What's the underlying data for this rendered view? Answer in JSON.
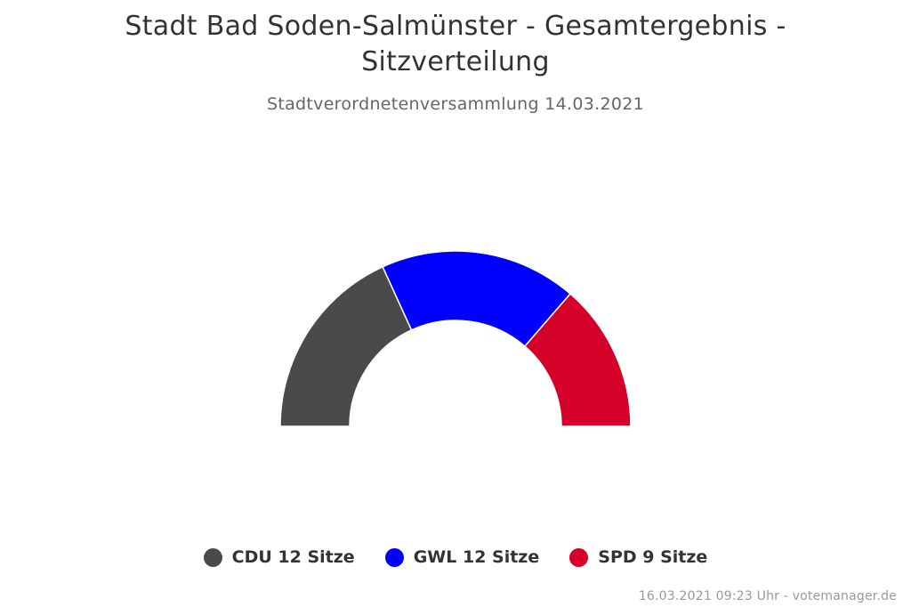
{
  "chart_data": {
    "type": "pie",
    "variant": "semi-circle",
    "title": "Stadt Bad Soden-Salmünster - Gesamtergebnis - Sitzverteilung",
    "subtitle": "Stadtverordnetenversammlung 14.03.2021",
    "series": [
      {
        "name": "CDU",
        "value": 12,
        "label": "CDU 12 Sitze",
        "color": "#4a4a4a"
      },
      {
        "name": "GWL",
        "value": 12,
        "label": "GWL 12 Sitze",
        "color": "#0000ff"
      },
      {
        "name": "SPD",
        "value": 9,
        "label": "SPD 9 Sitze",
        "color": "#d4002a"
      }
    ],
    "legend_position": "bottom-center",
    "credits": "16.03.2021 09:23 Uhr - votemanager.de"
  }
}
